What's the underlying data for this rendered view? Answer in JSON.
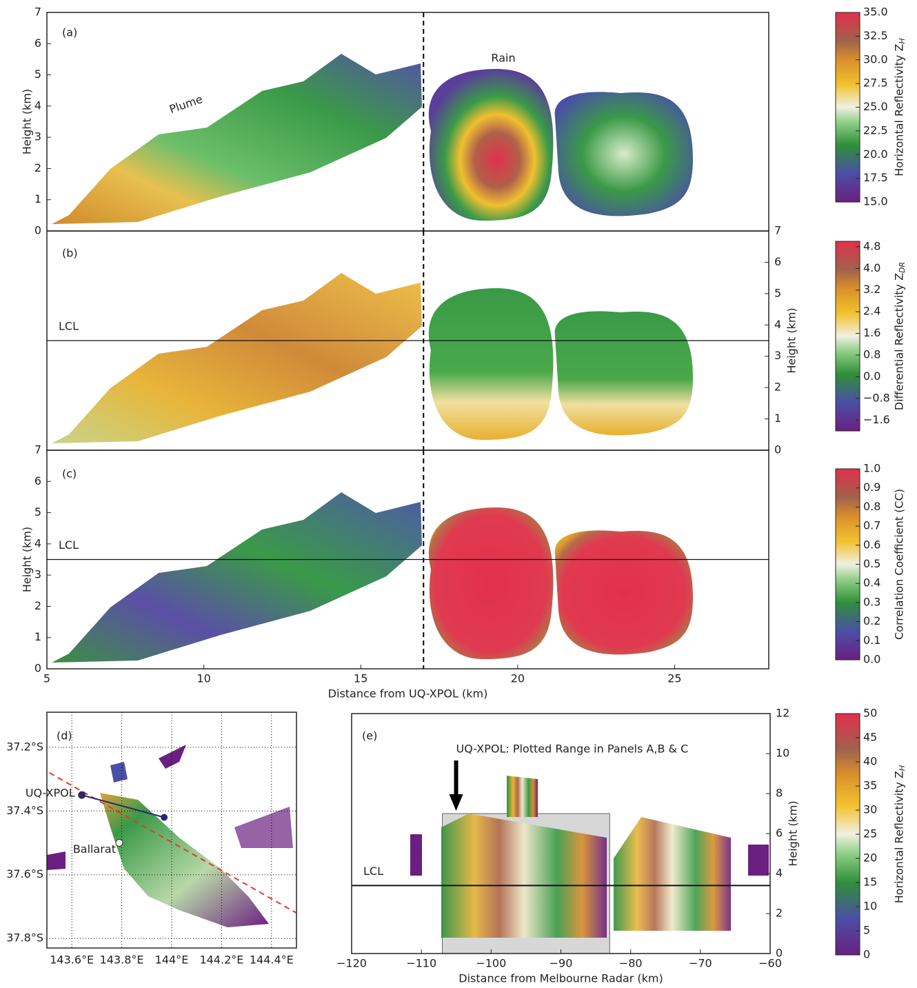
{
  "chart_data": [
    {
      "type": "section",
      "panel": "(a)",
      "ylabel": "Height (km)",
      "xlim": [
        5,
        28
      ],
      "ylim": [
        0,
        7
      ],
      "yticks": [
        0,
        1,
        2,
        3,
        4,
        5,
        6,
        7
      ],
      "divider_x": 17,
      "annotations": [
        "Plume",
        "Rain"
      ],
      "colorbar": {
        "label": "Horizontal Reflectivity Z",
        "label_sub": "H",
        "lim": [
          15,
          35
        ],
        "ticks": [
          {
            "value": 15,
            "label": "15.0"
          },
          17.5,
          {
            "value": 20,
            "label": "20.0"
          },
          22.5,
          {
            "value": 25,
            "label": "25.0"
          },
          27.5,
          {
            "value": 30,
            "label": "30.0"
          },
          32.5,
          {
            "value": 35,
            "label": "35.0"
          }
        ]
      }
    },
    {
      "type": "section",
      "panel": "(b)",
      "ylabel": "Height (km)",
      "xlim": [
        5,
        28
      ],
      "ylim": [
        0,
        7
      ],
      "yticks": [
        0,
        1,
        2,
        3,
        4,
        5,
        6,
        7
      ],
      "divider_x": 17,
      "lcl": {
        "label": "LCL",
        "height": 3.5
      },
      "colorbar": {
        "label": "Differential Reflectivity Z",
        "label_sub": "DR",
        "lim": [
          -2,
          5
        ],
        "ticks": [
          {
            "value": -1.6,
            "label": "−1.6"
          },
          {
            "value": -0.8,
            "label": "−0.8"
          },
          {
            "value": 0,
            "label": "0.0"
          },
          0.8,
          1.6,
          2.4,
          3.2,
          {
            "value": 4,
            "label": "4.0"
          },
          4.8
        ]
      }
    },
    {
      "type": "section",
      "panel": "(c)",
      "ylabel": "Height (km)",
      "xlabel": "Distance from UQ-XPOL (km)",
      "xlim": [
        5,
        28
      ],
      "ylim": [
        0,
        7
      ],
      "yticks": [
        0,
        1,
        2,
        3,
        4,
        5,
        6,
        7
      ],
      "xticks": [
        5,
        10,
        15,
        20,
        25
      ],
      "divider_x": 17,
      "lcl": {
        "label": "LCL",
        "height": 3.5
      },
      "colorbar": {
        "label": "Correlation Coefficient (CC)",
        "lim": [
          0,
          1
        ],
        "ticks": [
          {
            "value": 0,
            "label": "0.0"
          },
          0.1,
          0.2,
          0.3,
          0.4,
          0.5,
          0.6,
          0.7,
          0.8,
          0.9,
          {
            "value": 1,
            "label": "1.0"
          }
        ]
      }
    },
    {
      "type": "map",
      "panel": "(d)",
      "xlim": [
        143.5,
        144.5
      ],
      "ylim": [
        -37.83,
        -37.09
      ],
      "xticks": [
        {
          "value": 143.6,
          "label": "143.6°E"
        },
        {
          "value": 143.8,
          "label": "143.8°E"
        },
        {
          "value": 144,
          "label": "144°E"
        },
        {
          "value": 144.2,
          "label": "144.2°E"
        },
        {
          "value": 144.4,
          "label": "144.4°E"
        }
      ],
      "yticks": [
        {
          "value": -37.2,
          "label": "37.2°S"
        },
        {
          "value": -37.4,
          "label": "37.4°S"
        },
        {
          "value": -37.6,
          "label": "37.6°S"
        },
        {
          "value": -37.8,
          "label": "37.8°S"
        }
      ],
      "points": [
        {
          "name": "UQ-XPOL",
          "lon": 143.64,
          "lat": -37.35
        },
        {
          "name": "Ballarat",
          "lon": 143.79,
          "lat": -37.5
        }
      ],
      "beam_end": {
        "lon": 143.97,
        "lat": -37.42
      },
      "section_line": {
        "lon": [
          143.51,
          144.5
        ],
        "lat": [
          -37.28,
          -37.72
        ],
        "color": "#e8362b"
      }
    },
    {
      "type": "section",
      "panel": "(e)",
      "ylabel": "Height (km)",
      "xlabel": "Distance from Melbourne Radar (km)",
      "xlim": [
        -120,
        -60
      ],
      "ylim": [
        0,
        12
      ],
      "xticks": [
        {
          "value": -120,
          "label": "−120"
        },
        {
          "value": -110,
          "label": "−110"
        },
        {
          "value": -100,
          "label": "−100"
        },
        {
          "value": -90,
          "label": "−90"
        },
        {
          "value": -80,
          "label": "−80"
        },
        {
          "value": -70,
          "label": "−70"
        },
        {
          "value": -60,
          "label": "−60"
        }
      ],
      "yticks": [
        0,
        2,
        4,
        6,
        8,
        10,
        12
      ],
      "lcl": {
        "label": "LCL",
        "height": 3.4
      },
      "highlight": {
        "label": "UQ-XPOL: Plotted Range in Panels A,B & C",
        "xlim": [
          -107,
          -83
        ],
        "ylim": [
          0,
          7
        ]
      },
      "colorbar": {
        "label": "Horizontal Reflectivity Z",
        "label_sub": "H",
        "lim": [
          0,
          50
        ],
        "ticks": [
          0,
          5,
          10,
          15,
          20,
          25,
          30,
          35,
          40,
          45,
          50
        ]
      }
    }
  ]
}
